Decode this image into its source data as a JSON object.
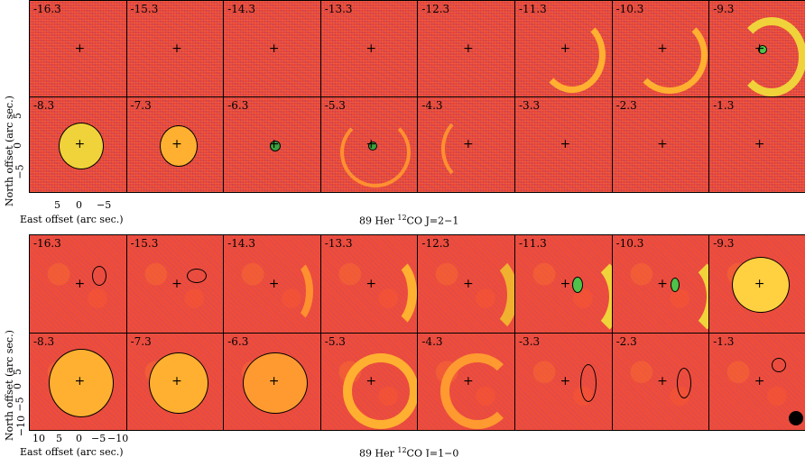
{
  "top": {
    "title_prefix": "89 Her ",
    "title_iso": "12",
    "title_suffix": "CO J=2−1",
    "ylabel": "North offset (arc sec.)",
    "xlabel": "East offset (arc sec.)",
    "yticks": [
      "5",
      "0",
      "−5"
    ],
    "xticks": [
      "5",
      "0",
      "−5"
    ],
    "channels": [
      "-16.3",
      "-15.3",
      "-14.3",
      "-13.3",
      "-12.3",
      "-11.3",
      "-10.3",
      "-9.3",
      "-8.3",
      "-7.3",
      "-6.3",
      "-5.3",
      "-4.3",
      "-3.3",
      "-2.3",
      "-1.3"
    ]
  },
  "bottom": {
    "title_prefix": "89 Her ",
    "title_iso": "12",
    "title_suffix": "CO J=1−0",
    "ylabel": "North offset (arc sec.)",
    "xlabel": "East offset (arc sec.)",
    "yticks": [
      "5",
      "0",
      "−5",
      "−10"
    ],
    "xticks": [
      "10",
      "5",
      "0",
      "−5",
      "−10"
    ],
    "channels": [
      "-16.3",
      "-15.3",
      "-14.3",
      "-13.3",
      "-12.3",
      "-11.3",
      "-10.3",
      "-9.3",
      "-8.3",
      "-7.3",
      "-6.3",
      "-5.3",
      "-4.3",
      "-3.3",
      "-2.3",
      "-1.3"
    ]
  },
  "colors": {
    "background": "#ea4a3a",
    "contour": "#000000",
    "peak_green": "#4ec24a",
    "peak_yellow": "#f0d23a",
    "peak_blue": "#6a5cc8"
  }
}
